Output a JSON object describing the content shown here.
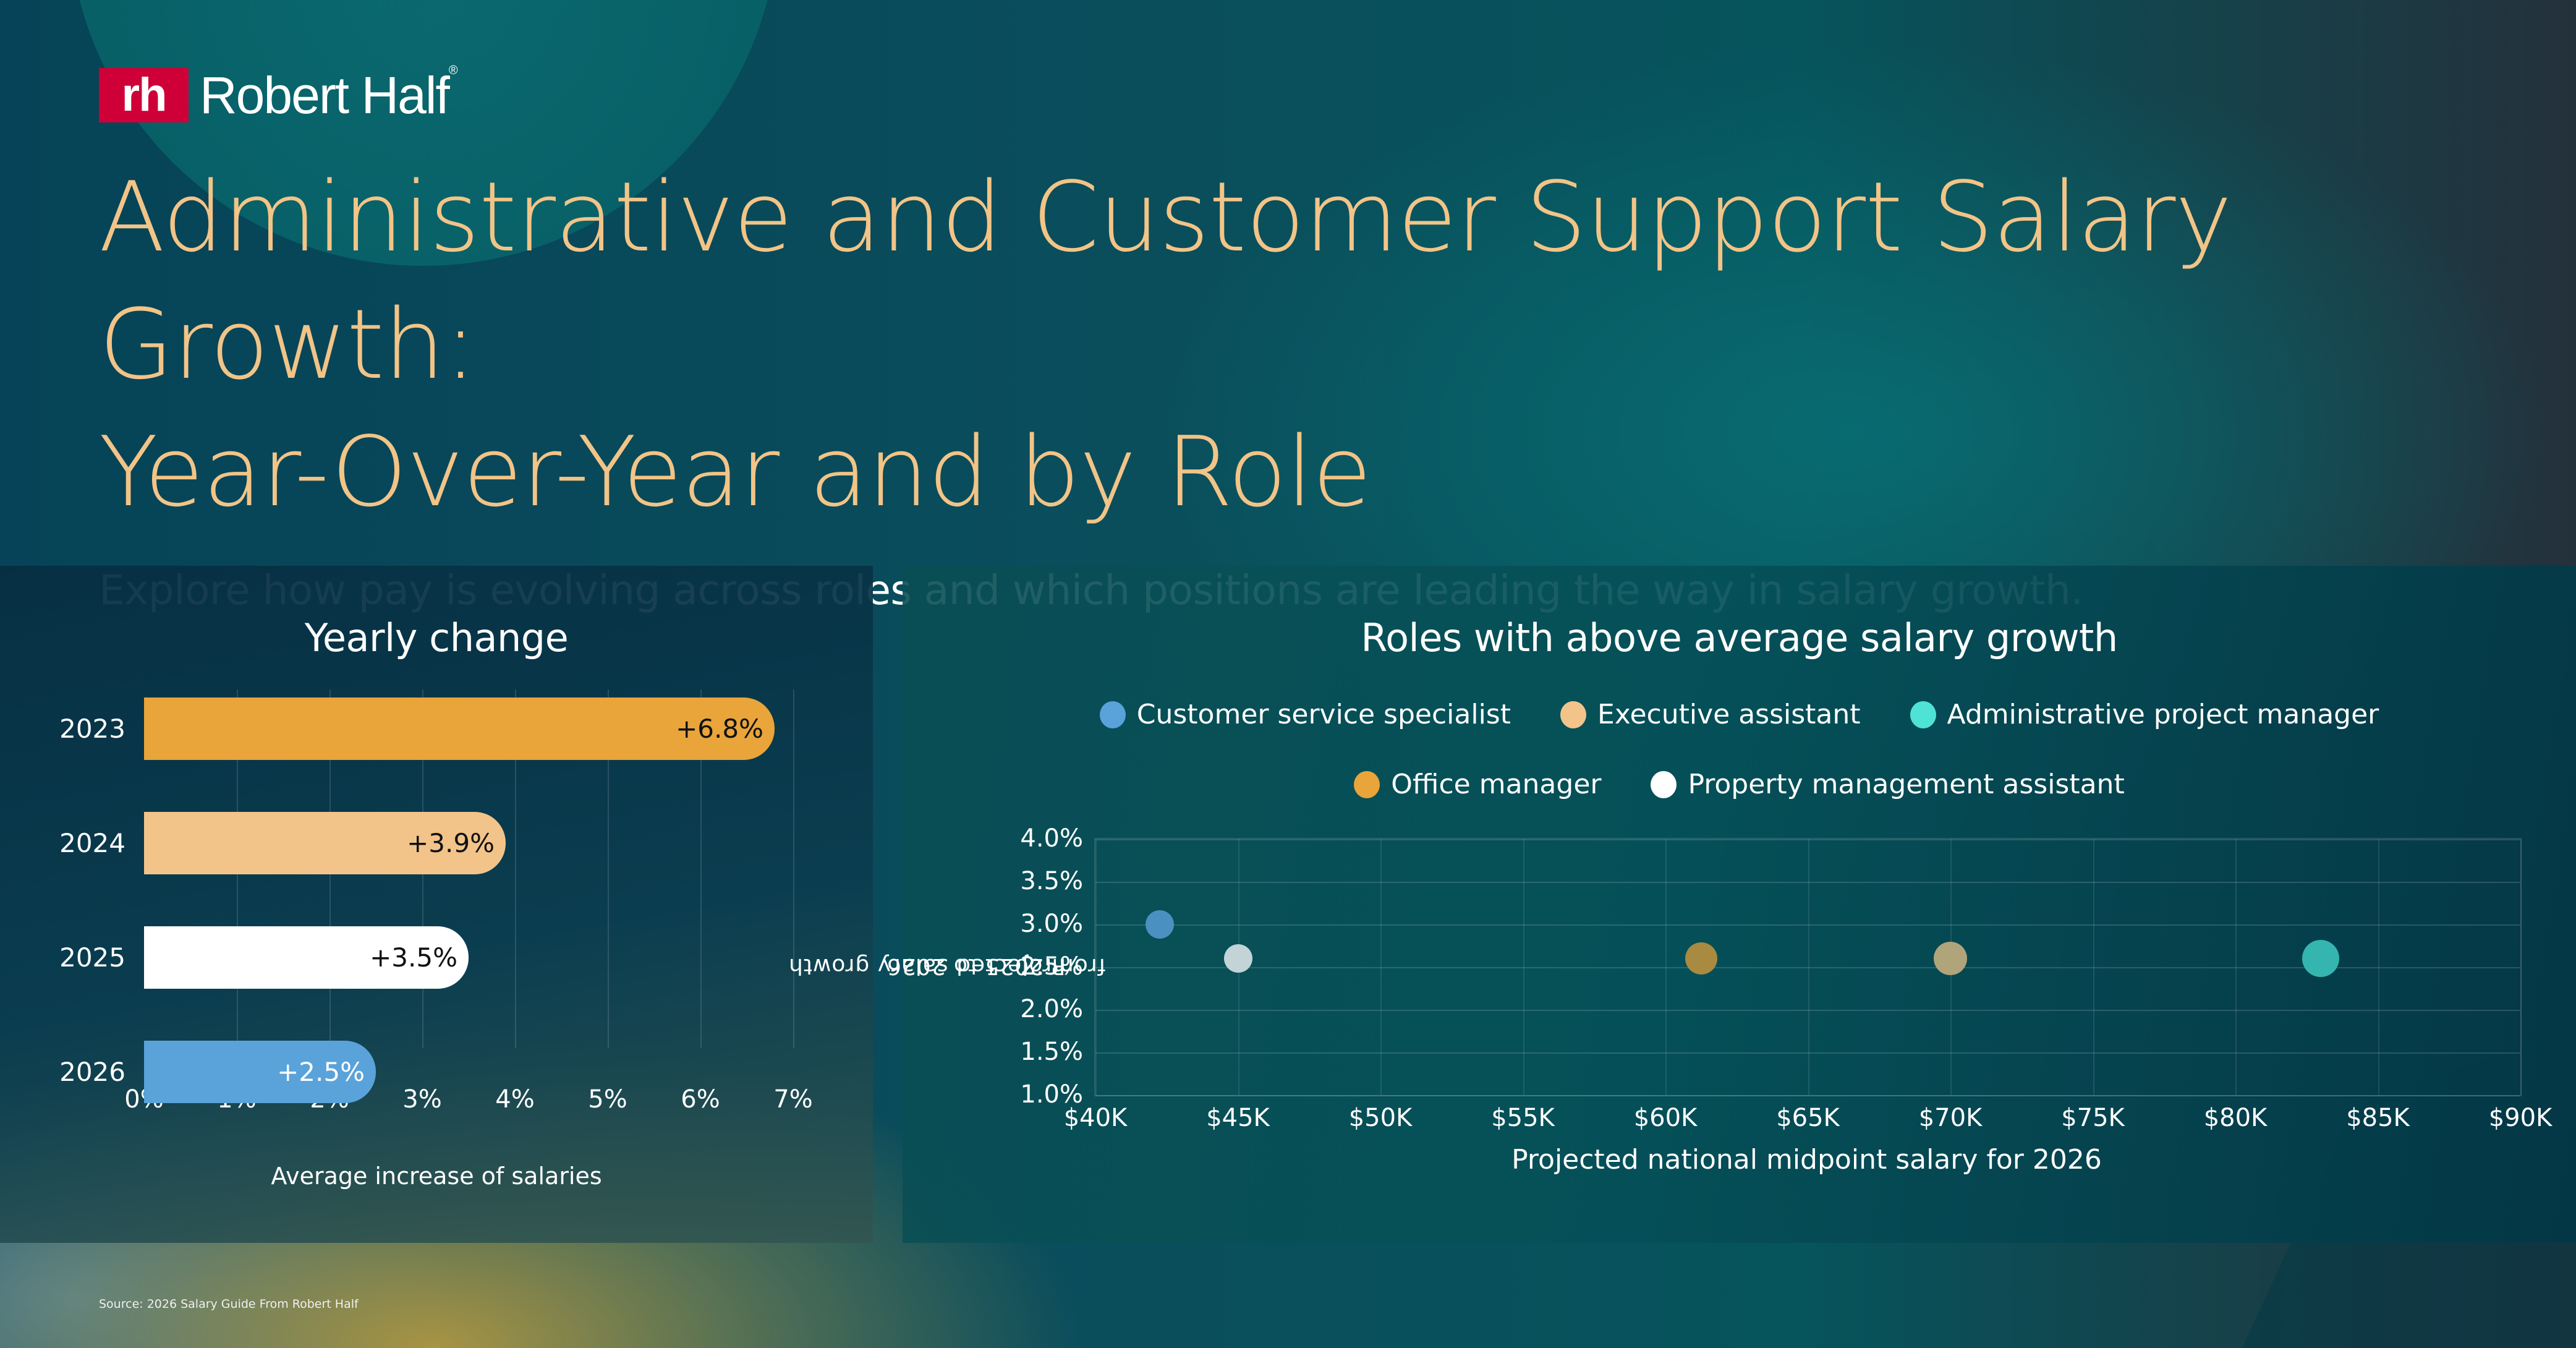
{
  "brand": {
    "logo_mark": "rh",
    "logo_text": "Robert Half",
    "registered": "®",
    "accent_color": "#ce0037"
  },
  "header": {
    "title_line1": "Administrative and Customer Support Salary Growth:",
    "title_line2": "Year-Over-Year and by Role",
    "subtitle": "Explore how pay is evolving across roles and which positions are leading the way in salary growth.",
    "title_color": "#f2c487"
  },
  "left_panel": {
    "title": "Yearly change",
    "xlabel": "Average increase of salaries",
    "xticks": [
      "0%",
      "1%",
      "2%",
      "3%",
      "4%",
      "5%",
      "6%",
      "7%"
    ],
    "bars": [
      {
        "year": "2023",
        "label": "+6.8%",
        "value": 6.8,
        "color": "#e9a43a",
        "text_color": "#111111"
      },
      {
        "year": "2024",
        "label": "+3.9%",
        "value": 3.9,
        "color": "#f2c48a",
        "text_color": "#111111"
      },
      {
        "year": "2025",
        "label": "+3.5%",
        "value": 3.5,
        "color": "#ffffff",
        "text_color": "#111111"
      },
      {
        "year": "2026",
        "label": "+2.5%",
        "value": 2.5,
        "color": "#5aa2da",
        "text_color": "#ffffff"
      }
    ]
  },
  "right_panel": {
    "title": "Roles with above average salary growth",
    "legend": [
      {
        "label": "Customer service specialist",
        "color": "#5aa2da"
      },
      {
        "label": "Executive assistant",
        "color": "#f2c48a"
      },
      {
        "label": "Administrative project manager",
        "color": "#4fe3d6"
      },
      {
        "label": "Office manager",
        "color": "#e9a43a"
      },
      {
        "label": "Property management assistant",
        "color": "#ffffff"
      }
    ],
    "ylabel_line1": "Projected salary growth",
    "ylabel_line2": "from 2025 to 2026",
    "xlabel": "Projected national midpoint salary for 2026",
    "yticks": [
      "4.0%",
      "3.5%",
      "3.0%",
      "2.5%",
      "2.0%",
      "1.5%",
      "1.0%"
    ],
    "xticks": [
      "$40K",
      "$45K",
      "$50K",
      "$55K",
      "$60K",
      "$65K",
      "$70K",
      "$75K",
      "$80K",
      "$85K",
      "$90K"
    ]
  },
  "footer": {
    "source": "Source: 2026 Salary Guide From Robert Half"
  },
  "chart_data": [
    {
      "type": "bar",
      "orientation": "horizontal",
      "title": "Yearly change",
      "categories": [
        "2023",
        "2024",
        "2025",
        "2026"
      ],
      "values": [
        6.8,
        3.9,
        3.5,
        2.5
      ],
      "data_labels": [
        "+6.8%",
        "+3.9%",
        "+3.5%",
        "+2.5%"
      ],
      "xlabel": "Average increase of salaries",
      "ylabel": "",
      "xlim": [
        0,
        7
      ],
      "xticks": [
        "0%",
        "1%",
        "2%",
        "3%",
        "4%",
        "5%",
        "6%",
        "7%"
      ],
      "grid": "vertical",
      "legend": null
    },
    {
      "type": "scatter",
      "title": "Roles with above average salary growth",
      "xlabel": "Projected national midpoint salary for 2026",
      "ylabel": "Projected salary growth from 2025 to 2026",
      "xlim": [
        40000,
        90000
      ],
      "ylim": [
        1.0,
        4.0
      ],
      "grid": true,
      "legend_position": "top",
      "series": [
        {
          "name": "Customer service specialist",
          "color": "#5aa2da",
          "points": [
            {
              "x": 42250,
              "y": 3.0
            }
          ]
        },
        {
          "name": "Executive assistant",
          "color": "#f2c48a",
          "points": [
            {
              "x": 70000,
              "y": 2.6
            }
          ]
        },
        {
          "name": "Administrative project manager",
          "color": "#4fe3d6",
          "points": [
            {
              "x": 83000,
              "y": 2.6
            }
          ]
        },
        {
          "name": "Office manager",
          "color": "#e9a43a",
          "points": [
            {
              "x": 61250,
              "y": 2.6
            }
          ]
        },
        {
          "name": "Property management assistant",
          "color": "#ffffff",
          "points": [
            {
              "x": 45000,
              "y": 2.6
            }
          ]
        }
      ]
    }
  ]
}
